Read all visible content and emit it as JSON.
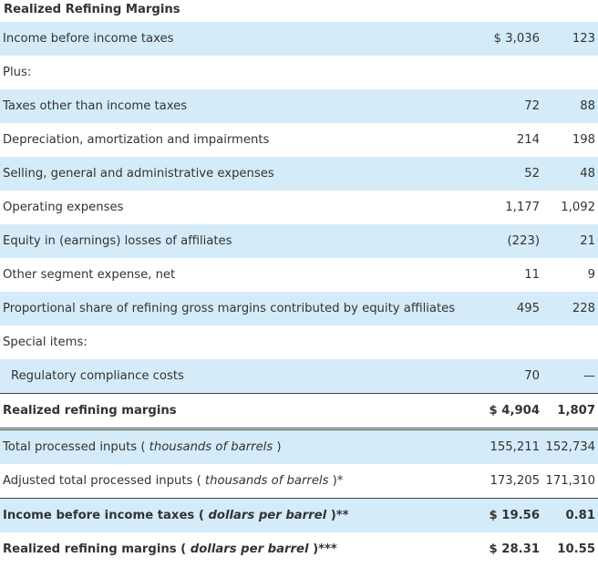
{
  "title": "Realized Refining Margins",
  "rows": [
    {
      "label": "Income before income taxes",
      "v1": "$ 3,036",
      "v2": "123"
    },
    {
      "label": "Plus:",
      "v1": "",
      "v2": ""
    },
    {
      "label": "Taxes other than income taxes",
      "v1": "72",
      "v2": "88"
    },
    {
      "label": "Depreciation, amortization and impairments",
      "v1": "214",
      "v2": "198"
    },
    {
      "label": "Selling, general and administrative expenses",
      "v1": "52",
      "v2": "48"
    },
    {
      "label": "Operating expenses",
      "v1": "1,177",
      "v2": "1,092"
    },
    {
      "label": "Equity in (earnings) losses of affiliates",
      "v1": "(223)",
      "v2": "21"
    },
    {
      "label": "Other segment expense, net",
      "v1": "11",
      "v2": "9"
    },
    {
      "label": "Proportional share of refining gross margins contributed by equity affiliates",
      "v1": "495",
      "v2": "228"
    },
    {
      "label": "Special items:",
      "v1": "",
      "v2": ""
    },
    {
      "label": "Regulatory compliance costs",
      "v1": "70",
      "v2": "—"
    },
    {
      "label": "Realized refining margins",
      "v1": "$ 4,904",
      "v2": "1,807"
    },
    {
      "label_prefix": "Total processed inputs ( ",
      "label_em": "thousands of barrels",
      "label_suffix": " )",
      "v1": "155,211",
      "v2": "152,734"
    },
    {
      "label_prefix": "Adjusted total processed inputs ( ",
      "label_em": "thousands of barrels",
      "label_suffix": " )*",
      "v1": "173,205",
      "v2": "171,310"
    },
    {
      "label_prefix": "Income before income taxes ( ",
      "label_em": "dollars per barrel",
      "label_suffix": " )**",
      "v1": "$ 19.56",
      "v2": "0.81"
    },
    {
      "label_prefix": "Realized refining margins ( ",
      "label_em": "dollars per barrel",
      "label_suffix": " )***",
      "v1": "$ 28.31",
      "v2": "10.55"
    }
  ]
}
